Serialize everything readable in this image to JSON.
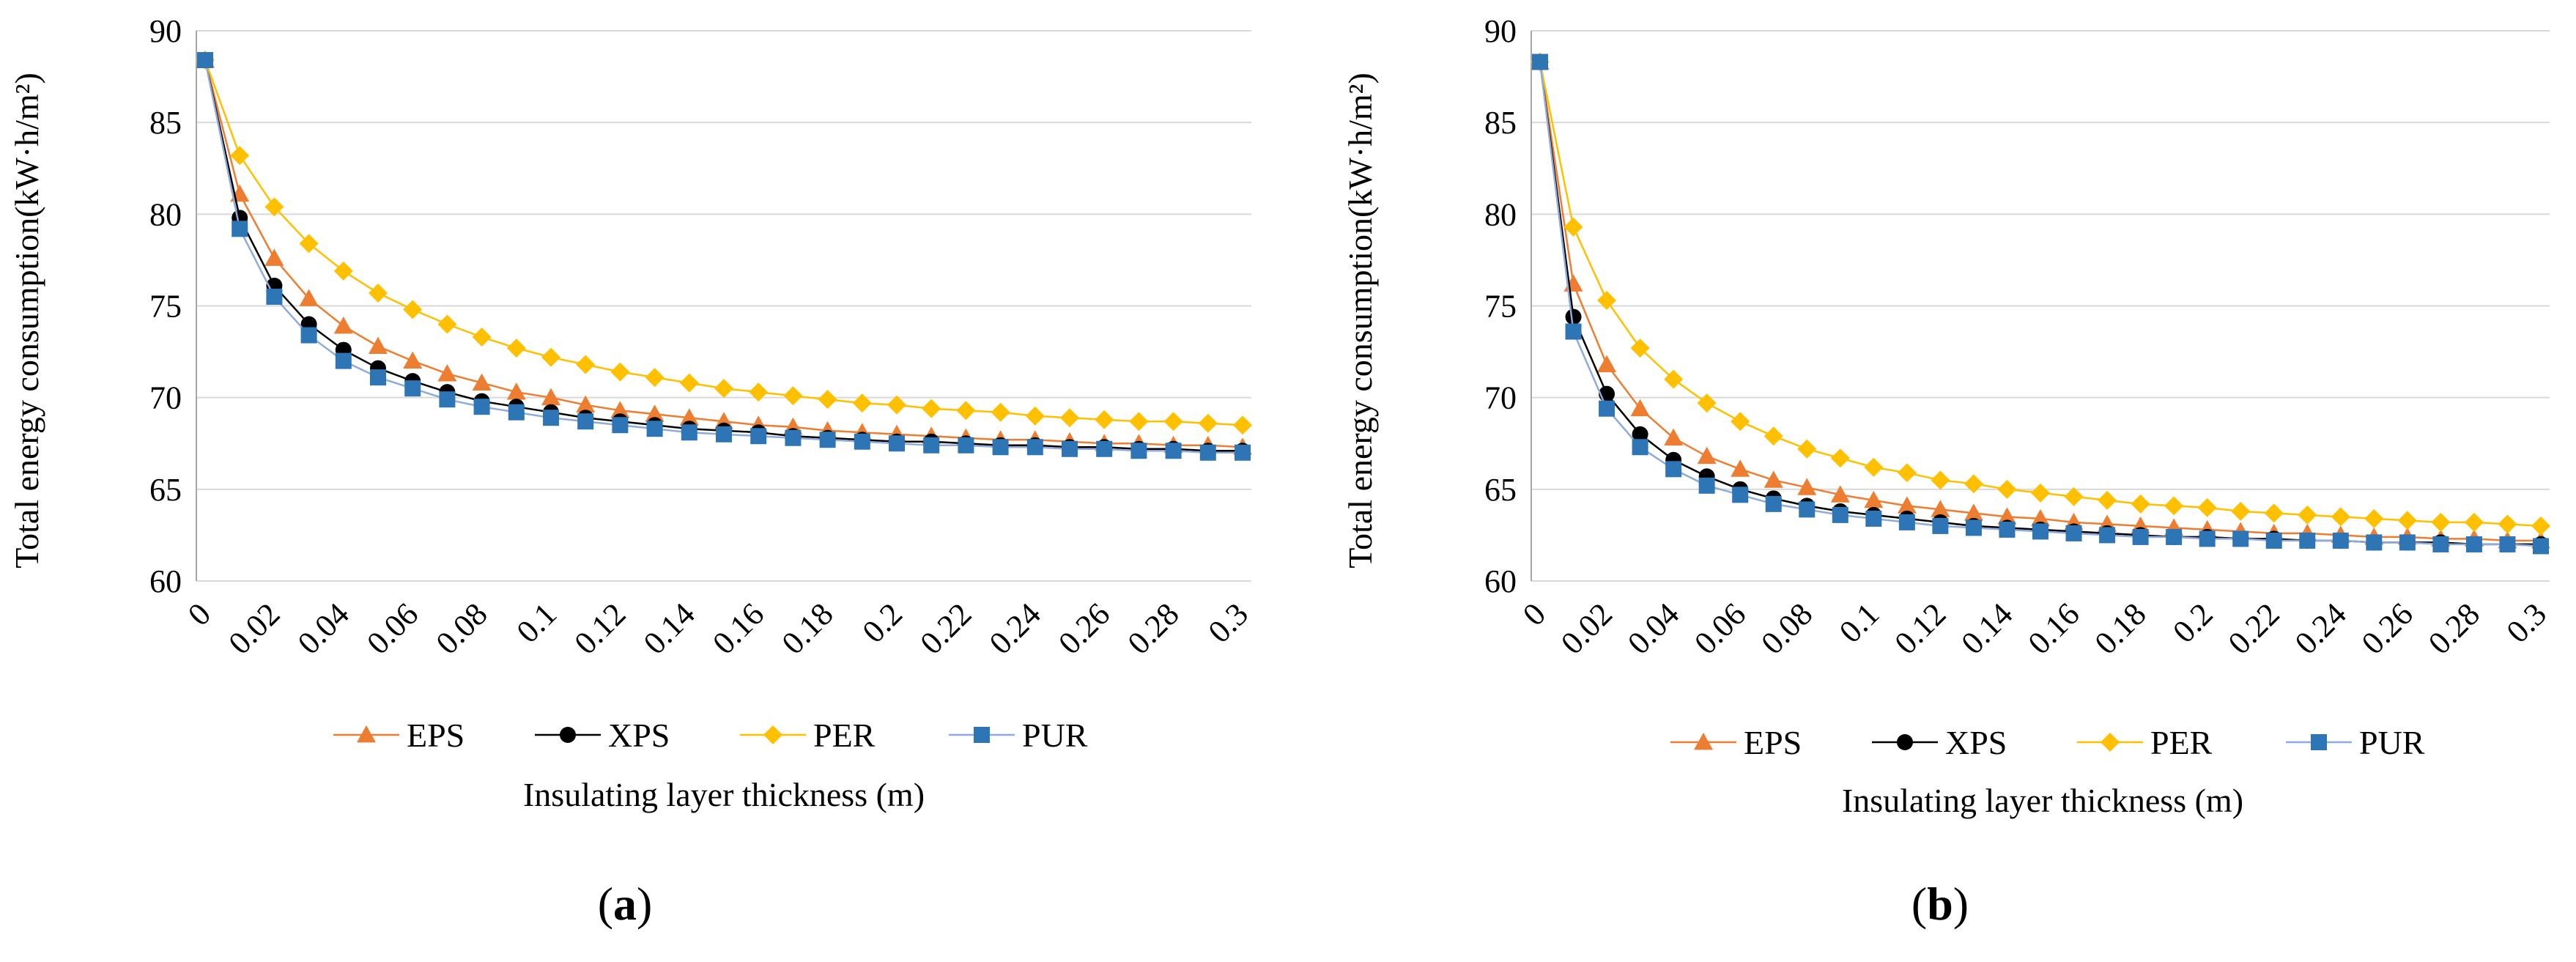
{
  "colors": {
    "EPS": "#ED7D31",
    "XPS": "#000000",
    "PER": "#FFC000",
    "PUR": "#2E75B6",
    "PUR_line": "#8FAADC",
    "grid": "#D9D9D9",
    "axis": "#A6A6A6"
  },
  "chart_data": [
    {
      "type": "line",
      "panel_label": "(a)",
      "panel_label_parts": {
        "open": "(",
        "letter": "a",
        "close": ")"
      },
      "xlabel": "Insulating layer thickness (m)",
      "ylabel": "Total energy consumption(kW·h/m²)",
      "ylim": [
        60,
        90
      ],
      "yticks": [
        "60",
        "65",
        "70",
        "75",
        "80",
        "85",
        "90"
      ],
      "xtick_labels": [
        "0",
        "0.02",
        "0.04",
        "0.06",
        "0.08",
        "0.1",
        "0.12",
        "0.14",
        "0.16",
        "0.18",
        "0.2",
        "0.22",
        "0.24",
        "0.26",
        "0.28",
        "0.3"
      ],
      "x": [
        0,
        0.01,
        0.02,
        0.03,
        0.04,
        0.05,
        0.06,
        0.07,
        0.08,
        0.09,
        0.1,
        0.11,
        0.12,
        0.13,
        0.14,
        0.15,
        0.16,
        0.17,
        0.18,
        0.19,
        0.2,
        0.21,
        0.22,
        0.23,
        0.24,
        0.25,
        0.26,
        0.27,
        0.28,
        0.29,
        0.3
      ],
      "legend": [
        "EPS",
        "XPS",
        "PER",
        "PUR"
      ],
      "series": [
        {
          "name": "EPS",
          "marker": "triangle",
          "values": [
            88.4,
            81.1,
            77.6,
            75.4,
            73.9,
            72.8,
            72.0,
            71.3,
            70.8,
            70.3,
            70.0,
            69.6,
            69.3,
            69.1,
            68.9,
            68.7,
            68.5,
            68.4,
            68.2,
            68.1,
            68.0,
            67.9,
            67.8,
            67.7,
            67.7,
            67.6,
            67.5,
            67.5,
            67.4,
            67.4,
            67.3
          ]
        },
        {
          "name": "XPS",
          "marker": "circle",
          "values": [
            88.4,
            79.8,
            76.1,
            74.0,
            72.6,
            71.6,
            70.9,
            70.3,
            69.8,
            69.5,
            69.2,
            68.9,
            68.7,
            68.5,
            68.3,
            68.2,
            68.1,
            67.9,
            67.8,
            67.7,
            67.6,
            67.6,
            67.5,
            67.4,
            67.4,
            67.3,
            67.3,
            67.2,
            67.2,
            67.1,
            67.1
          ]
        },
        {
          "name": "PER",
          "marker": "diamond",
          "values": [
            88.4,
            83.2,
            80.4,
            78.4,
            76.9,
            75.7,
            74.8,
            74.0,
            73.3,
            72.7,
            72.2,
            71.8,
            71.4,
            71.1,
            70.8,
            70.5,
            70.3,
            70.1,
            69.9,
            69.7,
            69.6,
            69.4,
            69.3,
            69.2,
            69.0,
            68.9,
            68.8,
            68.7,
            68.7,
            68.6,
            68.5
          ]
        },
        {
          "name": "PUR",
          "marker": "square",
          "values": [
            88.4,
            79.2,
            75.5,
            73.4,
            72.0,
            71.1,
            70.5,
            69.9,
            69.5,
            69.2,
            68.9,
            68.7,
            68.5,
            68.3,
            68.1,
            68.0,
            67.9,
            67.8,
            67.7,
            67.6,
            67.5,
            67.4,
            67.4,
            67.3,
            67.3,
            67.2,
            67.2,
            67.1,
            67.1,
            67.0,
            67.0
          ]
        }
      ]
    },
    {
      "type": "line",
      "panel_label": "(b)",
      "panel_label_parts": {
        "open": "(",
        "letter": "b",
        "close": ")"
      },
      "xlabel": "Insulating layer thickness (m)",
      "ylabel": "Total energy consumption(kW·h/m²)",
      "ylim": [
        60,
        90
      ],
      "yticks": [
        "60",
        "65",
        "70",
        "75",
        "80",
        "85",
        "90"
      ],
      "xtick_labels": [
        "0",
        "0.02",
        "0.04",
        "0.06",
        "0.08",
        "0.1",
        "0.12",
        "0.14",
        "0.16",
        "0.18",
        "0.2",
        "0.22",
        "0.24",
        "0.26",
        "0.28",
        "0.3"
      ],
      "x": [
        0,
        0.01,
        0.02,
        0.03,
        0.04,
        0.05,
        0.06,
        0.07,
        0.08,
        0.09,
        0.1,
        0.11,
        0.12,
        0.13,
        0.14,
        0.15,
        0.16,
        0.17,
        0.18,
        0.19,
        0.2,
        0.21,
        0.22,
        0.23,
        0.24,
        0.25,
        0.26,
        0.27,
        0.28,
        0.29,
        0.3
      ],
      "legend": [
        "EPS",
        "XPS",
        "PER",
        "PUR"
      ],
      "series": [
        {
          "name": "EPS",
          "marker": "triangle",
          "values": [
            88.3,
            76.2,
            71.8,
            69.4,
            67.8,
            66.8,
            66.1,
            65.5,
            65.1,
            64.7,
            64.4,
            64.1,
            63.9,
            63.7,
            63.5,
            63.4,
            63.2,
            63.1,
            63.0,
            62.9,
            62.8,
            62.7,
            62.6,
            62.6,
            62.5,
            62.4,
            62.4,
            62.3,
            62.3,
            62.2,
            62.2
          ]
        },
        {
          "name": "XPS",
          "marker": "circle",
          "values": [
            88.3,
            74.4,
            70.2,
            68.0,
            66.6,
            65.7,
            65.0,
            64.5,
            64.1,
            63.8,
            63.6,
            63.4,
            63.2,
            63.0,
            62.9,
            62.8,
            62.7,
            62.6,
            62.5,
            62.4,
            62.4,
            62.3,
            62.3,
            62.2,
            62.2,
            62.1,
            62.1,
            62.1,
            62.0,
            62.0,
            62.0
          ]
        },
        {
          "name": "PER",
          "marker": "diamond",
          "values": [
            88.3,
            79.3,
            75.3,
            72.7,
            71.0,
            69.7,
            68.7,
            67.9,
            67.2,
            66.7,
            66.2,
            65.9,
            65.5,
            65.3,
            65.0,
            64.8,
            64.6,
            64.4,
            64.2,
            64.1,
            64.0,
            63.8,
            63.7,
            63.6,
            63.5,
            63.4,
            63.3,
            63.2,
            63.2,
            63.1,
            63.0
          ]
        },
        {
          "name": "PUR",
          "marker": "square",
          "values": [
            88.3,
            73.6,
            69.4,
            67.3,
            66.1,
            65.2,
            64.7,
            64.2,
            63.9,
            63.6,
            63.4,
            63.2,
            63.0,
            62.9,
            62.8,
            62.7,
            62.6,
            62.5,
            62.4,
            62.4,
            62.3,
            62.3,
            62.2,
            62.2,
            62.2,
            62.1,
            62.1,
            62.0,
            62.0,
            62.0,
            61.9
          ]
        }
      ]
    }
  ]
}
